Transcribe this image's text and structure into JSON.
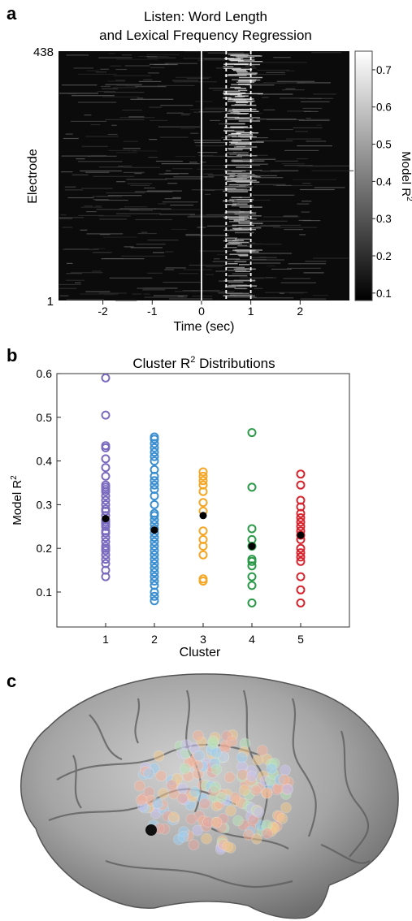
{
  "panels": {
    "a": "a",
    "b": "b",
    "c": "c"
  },
  "chart_data": [
    {
      "type": "heatmap",
      "title_line1": "Listen: Word Length",
      "title_line2": "and Lexical Frequency Regression",
      "xlabel": "Time (sec)",
      "ylabel": "Electrode",
      "xlim": [
        -2.9,
        3.0
      ],
      "x_ticks": [
        -2,
        -1,
        0,
        1,
        2
      ],
      "y_top_label": "438",
      "y_bottom_label": "1",
      "vlines": [
        {
          "x": 0,
          "style": "solid",
          "color": "#ffffff"
        },
        {
          "x": 0.5,
          "style": "dashed",
          "color": "#ffffff"
        },
        {
          "x": 1.0,
          "style": "dashed",
          "color": "#ffffff"
        }
      ],
      "colorbar": {
        "label": "Model R",
        "label_sup": "2",
        "range": [
          0.08,
          0.75
        ],
        "ticks": [
          0.1,
          0.2,
          0.3,
          0.4,
          0.5,
          0.6,
          0.7
        ],
        "colormap": "gray"
      }
    },
    {
      "type": "scatter",
      "title": "Cluster R",
      "title_sup": "2",
      "title_rest": " Distributions",
      "xlabel": "Cluster",
      "ylabel": "Model R",
      "ylabel_sup": "2",
      "xlim": [
        0,
        6
      ],
      "ylim": [
        0.02,
        0.6
      ],
      "x_ticks": [
        1,
        2,
        3,
        4,
        5
      ],
      "y_ticks": [
        0.1,
        0.2,
        0.3,
        0.4,
        0.5,
        0.6
      ],
      "series": [
        {
          "cluster": 1,
          "color": "#7b6bbf",
          "mean": 0.268,
          "values": [
            0.59,
            0.505,
            0.435,
            0.43,
            0.405,
            0.385,
            0.365,
            0.345,
            0.34,
            0.335,
            0.33,
            0.32,
            0.31,
            0.3,
            0.29,
            0.285,
            0.275,
            0.265,
            0.26,
            0.255,
            0.25,
            0.24,
            0.235,
            0.225,
            0.215,
            0.205,
            0.2,
            0.195,
            0.185,
            0.175,
            0.165,
            0.15,
            0.135
          ]
        },
        {
          "cluster": 2,
          "color": "#3b8fd0",
          "mean": 0.242,
          "values": [
            0.455,
            0.45,
            0.44,
            0.43,
            0.42,
            0.41,
            0.4,
            0.38,
            0.365,
            0.355,
            0.345,
            0.335,
            0.32,
            0.3,
            0.28,
            0.275,
            0.265,
            0.255,
            0.245,
            0.235,
            0.225,
            0.215,
            0.205,
            0.195,
            0.185,
            0.175,
            0.165,
            0.155,
            0.145,
            0.135,
            0.125,
            0.115,
            0.1,
            0.09,
            0.08
          ]
        },
        {
          "cluster": 3,
          "color": "#f5a623",
          "mean": 0.275,
          "values": [
            0.375,
            0.365,
            0.355,
            0.345,
            0.33,
            0.305,
            0.285,
            0.24,
            0.22,
            0.205,
            0.185,
            0.13,
            0.125
          ]
        },
        {
          "cluster": 4,
          "color": "#2a9a48",
          "mean": 0.205,
          "values": [
            0.465,
            0.34,
            0.245,
            0.22,
            0.205,
            0.175,
            0.17,
            0.16,
            0.135,
            0.115,
            0.075
          ]
        },
        {
          "cluster": 5,
          "color": "#d7262f",
          "mean": 0.23,
          "values": [
            0.37,
            0.345,
            0.31,
            0.295,
            0.28,
            0.27,
            0.26,
            0.25,
            0.24,
            0.23,
            0.22,
            0.2,
            0.19,
            0.18,
            0.17,
            0.135,
            0.105,
            0.075
          ]
        }
      ]
    }
  ]
}
